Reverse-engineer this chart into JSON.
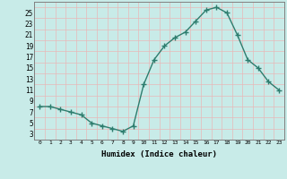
{
  "x": [
    0,
    1,
    2,
    3,
    4,
    5,
    6,
    7,
    8,
    9,
    10,
    11,
    12,
    13,
    14,
    15,
    16,
    17,
    18,
    19,
    20,
    21,
    22,
    23
  ],
  "y": [
    8,
    8,
    7.5,
    7,
    6.5,
    5,
    4.5,
    4,
    3.5,
    4.5,
    12,
    16.5,
    19,
    20.5,
    21.5,
    23.5,
    25.5,
    26,
    25,
    21,
    16.5,
    15,
    12.5,
    11
  ],
  "line_color": "#2d7d6e",
  "marker_color": "#2d7d6e",
  "bg_color": "#c8ebe8",
  "grid_color_major": "#e8b8b8",
  "grid_color_minor": "#e8b8b8",
  "xlabel": "Humidex (Indice chaleur)",
  "xlim": [
    -0.5,
    23.5
  ],
  "ylim": [
    2,
    27
  ],
  "yticks": [
    3,
    5,
    7,
    9,
    11,
    13,
    15,
    17,
    19,
    21,
    23,
    25
  ],
  "xticks": [
    0,
    1,
    2,
    3,
    4,
    5,
    6,
    7,
    8,
    9,
    10,
    11,
    12,
    13,
    14,
    15,
    16,
    17,
    18,
    19,
    20,
    21,
    22,
    23
  ],
  "xtick_labels": [
    "0",
    "1",
    "2",
    "3",
    "4",
    "5",
    "6",
    "7",
    "8",
    "9",
    "10",
    "11",
    "12",
    "13",
    "14",
    "15",
    "16",
    "17",
    "18",
    "19",
    "20",
    "21",
    "22",
    "23"
  ],
  "line_width": 1.0,
  "marker_size": 4
}
